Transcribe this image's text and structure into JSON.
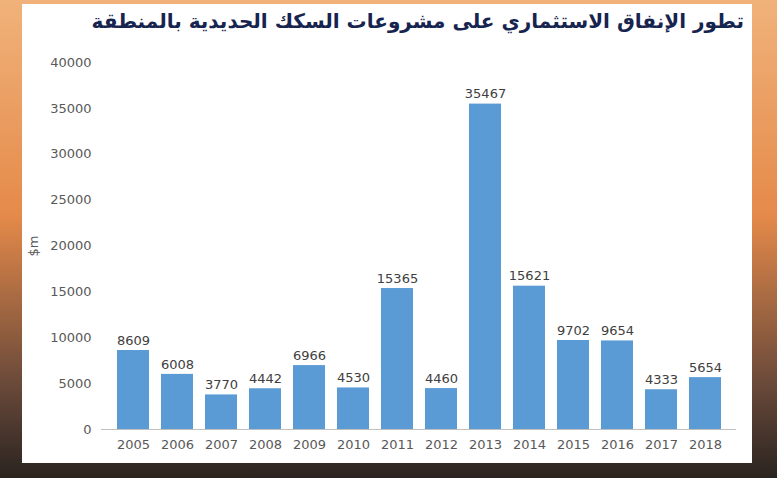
{
  "chart_data": {
    "type": "bar",
    "title": "تطور الإنفاق الاستثماري على مشروعات السكك الحديدية بالمنطقة",
    "ylabel": "$m",
    "categories": [
      "2005",
      "2006",
      "2007",
      "2008",
      "2009",
      "2010",
      "2011",
      "2012",
      "2013",
      "2014",
      "2015",
      "2016",
      "2017",
      "2018"
    ],
    "values": [
      8609,
      6008,
      3770,
      4442,
      6966,
      4530,
      15365,
      4460,
      35467,
      15621,
      9702,
      9654,
      4333,
      5654
    ],
    "color": "#5b9bd5",
    "ylim": [
      0,
      40000
    ],
    "yticks": [
      0,
      5000,
      10000,
      15000,
      20000,
      25000,
      30000,
      35000,
      40000
    ],
    "grid": false,
    "data_labels": true
  }
}
